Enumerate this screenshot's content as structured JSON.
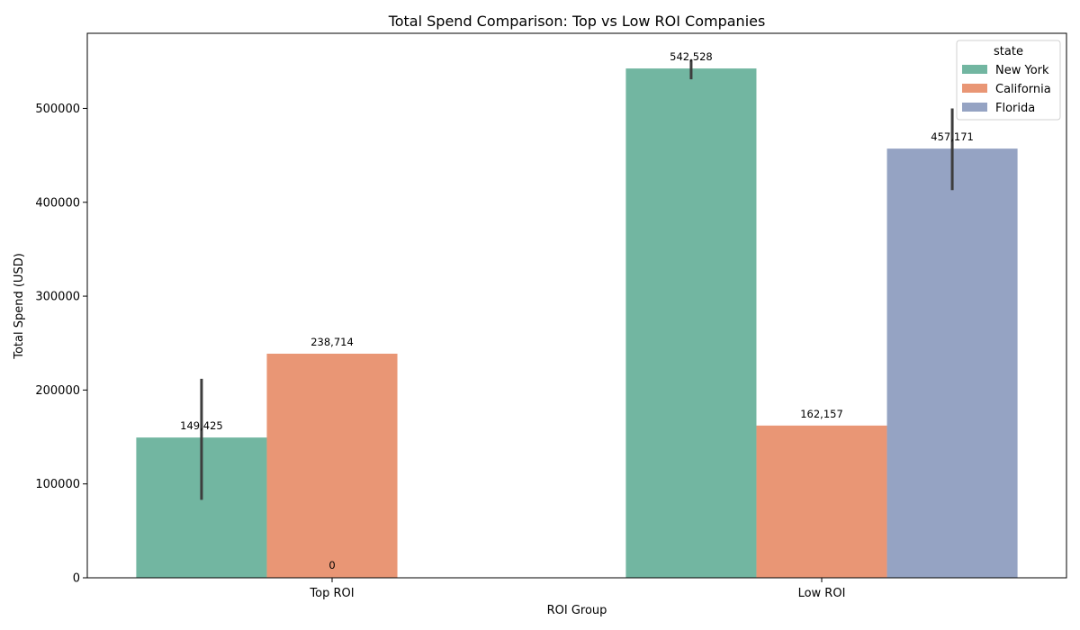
{
  "chart_data": {
    "type": "bar",
    "title": "Total Spend Comparison: Top vs Low ROI Companies",
    "xlabel": "ROI Group",
    "ylabel": "Total Spend (USD)",
    "categories": [
      "Top ROI",
      "Low ROI"
    ],
    "ylim": [
      0,
      580000
    ],
    "yticks": [
      0,
      100000,
      200000,
      300000,
      400000,
      500000
    ],
    "ytick_labels": [
      "0",
      "100000",
      "200000",
      "300000",
      "400000",
      "500000"
    ],
    "grid": false,
    "legend": {
      "title": "state",
      "placement": "top-right"
    },
    "series": [
      {
        "name": "New York",
        "color": "#72b6a1",
        "values": [
          149425,
          542528
        ],
        "labels": [
          "149,425",
          "542,528"
        ],
        "error_bars": [
          [
            83000,
            212000
          ],
          [
            531000,
            552000
          ]
        ]
      },
      {
        "name": "California",
        "color": "#e99675",
        "values": [
          238714,
          162157
        ],
        "labels": [
          "238,714",
          "162,157"
        ],
        "error_bars": [
          null,
          null
        ]
      },
      {
        "name": "Florida",
        "color": "#95a3c3",
        "values": [
          0,
          457171
        ],
        "labels": [
          "0",
          "457,171"
        ],
        "error_bars": [
          null,
          [
            413000,
            500000
          ]
        ]
      }
    ],
    "extra_labels": [
      {
        "category": "Top ROI",
        "text": "0"
      }
    ]
  }
}
